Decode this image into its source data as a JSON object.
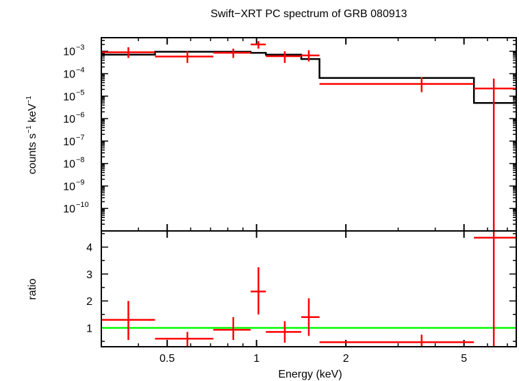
{
  "chart_data": {
    "type": "line",
    "title": "Swift−XRT PC spectrum of GRB 080913",
    "xlabel": "Energy (keV)",
    "x_scale": "log",
    "xlim": [
      0.3,
      7.5
    ],
    "x_ticks": [
      0.5,
      1,
      2,
      5
    ],
    "x_tick_labels": [
      "0.5",
      "1",
      "2",
      "5"
    ],
    "panels": [
      {
        "name": "spectrum",
        "ylabel_parts": [
          "counts s",
          "−1",
          " keV",
          "−1"
        ],
        "y_scale": "log",
        "ylim": [
          1e-11,
          0.004
        ],
        "y_ticks": [
          {
            "value": 0.001,
            "base": "10",
            "exp": "−3"
          },
          {
            "value": 0.0001,
            "base": "10",
            "exp": "−4"
          },
          {
            "value": 1e-05,
            "base": "10",
            "exp": "−5"
          },
          {
            "value": 1e-06,
            "base": "10",
            "exp": "−6"
          },
          {
            "value": 1e-07,
            "base": "10",
            "exp": "−7"
          },
          {
            "value": 1e-08,
            "base": "10",
            "exp": "−8"
          },
          {
            "value": 1e-09,
            "base": "10",
            "exp": "−9"
          },
          {
            "value": 1e-10,
            "base": "10",
            "exp": "−10"
          }
        ],
        "series": [
          {
            "name": "data",
            "color": "#ff0000",
            "points": [
              {
                "x": 0.37,
                "xlo": 0.3,
                "xhi": 0.455,
                "y": 0.0009,
                "ylo": 0.0005,
                "yhi": 0.0015
              },
              {
                "x": 0.585,
                "xlo": 0.455,
                "xhi": 0.715,
                "y": 0.00058,
                "ylo": 0.0003,
                "yhi": 0.001
              },
              {
                "x": 0.835,
                "xlo": 0.715,
                "xhi": 0.955,
                "y": 0.00085,
                "ylo": 0.0005,
                "yhi": 0.0013
              },
              {
                "x": 1.015,
                "xlo": 0.955,
                "xhi": 1.075,
                "y": 0.002,
                "ylo": 0.0013,
                "yhi": 0.0028
              },
              {
                "x": 1.245,
                "xlo": 1.075,
                "xhi": 1.415,
                "y": 0.0006,
                "ylo": 0.0003,
                "yhi": 0.001
              },
              {
                "x": 1.5,
                "xlo": 1.415,
                "xhi": 1.63,
                "y": 0.00065,
                "ylo": 0.00035,
                "yhi": 0.0011
              },
              {
                "x": 3.6,
                "xlo": 1.63,
                "xhi": 5.4,
                "y": 3.5e-05,
                "ylo": 1.5e-05,
                "yhi": 7e-05
              },
              {
                "x": 6.3,
                "xlo": 5.4,
                "xhi": 7.5,
                "y": 2.2e-05,
                "ylo": 1e-11,
                "yhi": 6e-05
              }
            ]
          },
          {
            "name": "model",
            "color": "#000000",
            "steps": [
              {
                "xlo": 0.3,
                "xhi": 0.455,
                "y": 0.0007
              },
              {
                "xlo": 0.455,
                "xhi": 0.715,
                "y": 0.00095
              },
              {
                "xlo": 0.715,
                "xhi": 0.955,
                "y": 0.00095
              },
              {
                "xlo": 0.955,
                "xhi": 1.075,
                "y": 0.00085
              },
              {
                "xlo": 1.075,
                "xhi": 1.415,
                "y": 0.0007
              },
              {
                "xlo": 1.415,
                "xhi": 1.63,
                "y": 0.00045
              },
              {
                "xlo": 1.63,
                "xhi": 5.4,
                "y": 6.5e-05
              },
              {
                "xlo": 5.4,
                "xhi": 7.5,
                "y": 5e-06
              }
            ]
          }
        ]
      },
      {
        "name": "ratio",
        "ylabel": "ratio",
        "y_scale": "linear",
        "ylim": [
          0.3,
          4.6
        ],
        "y_ticks": [
          {
            "value": 1,
            "label": "1"
          },
          {
            "value": 2,
            "label": "2"
          },
          {
            "value": 3,
            "label": "3"
          },
          {
            "value": 4,
            "label": "4"
          }
        ],
        "reference_line": {
          "y": 1,
          "color": "#00ff00"
        },
        "series": [
          {
            "name": "ratio",
            "color": "#ff0000",
            "points": [
              {
                "x": 0.37,
                "xlo": 0.3,
                "xhi": 0.455,
                "y": 1.3,
                "ylo": 0.55,
                "yhi": 2.0
              },
              {
                "x": 0.585,
                "xlo": 0.455,
                "xhi": 0.715,
                "y": 0.6,
                "ylo": 0.3,
                "yhi": 0.85
              },
              {
                "x": 0.835,
                "xlo": 0.715,
                "xhi": 0.955,
                "y": 0.93,
                "ylo": 0.55,
                "yhi": 1.4
              },
              {
                "x": 1.015,
                "xlo": 0.955,
                "xhi": 1.075,
                "y": 2.35,
                "ylo": 1.5,
                "yhi": 3.25
              },
              {
                "x": 1.245,
                "xlo": 1.075,
                "xhi": 1.415,
                "y": 0.85,
                "ylo": 0.45,
                "yhi": 1.25
              },
              {
                "x": 1.5,
                "xlo": 1.415,
                "xhi": 1.63,
                "y": 1.4,
                "ylo": 0.7,
                "yhi": 2.1
              },
              {
                "x": 3.6,
                "xlo": 1.63,
                "xhi": 5.4,
                "y": 0.47,
                "ylo": 0.3,
                "yhi": 0.75
              },
              {
                "x": 6.3,
                "xlo": 5.4,
                "xhi": 7.5,
                "y": 4.35,
                "ylo": 0.3,
                "yhi": 4.6
              }
            ]
          }
        ]
      }
    ]
  }
}
